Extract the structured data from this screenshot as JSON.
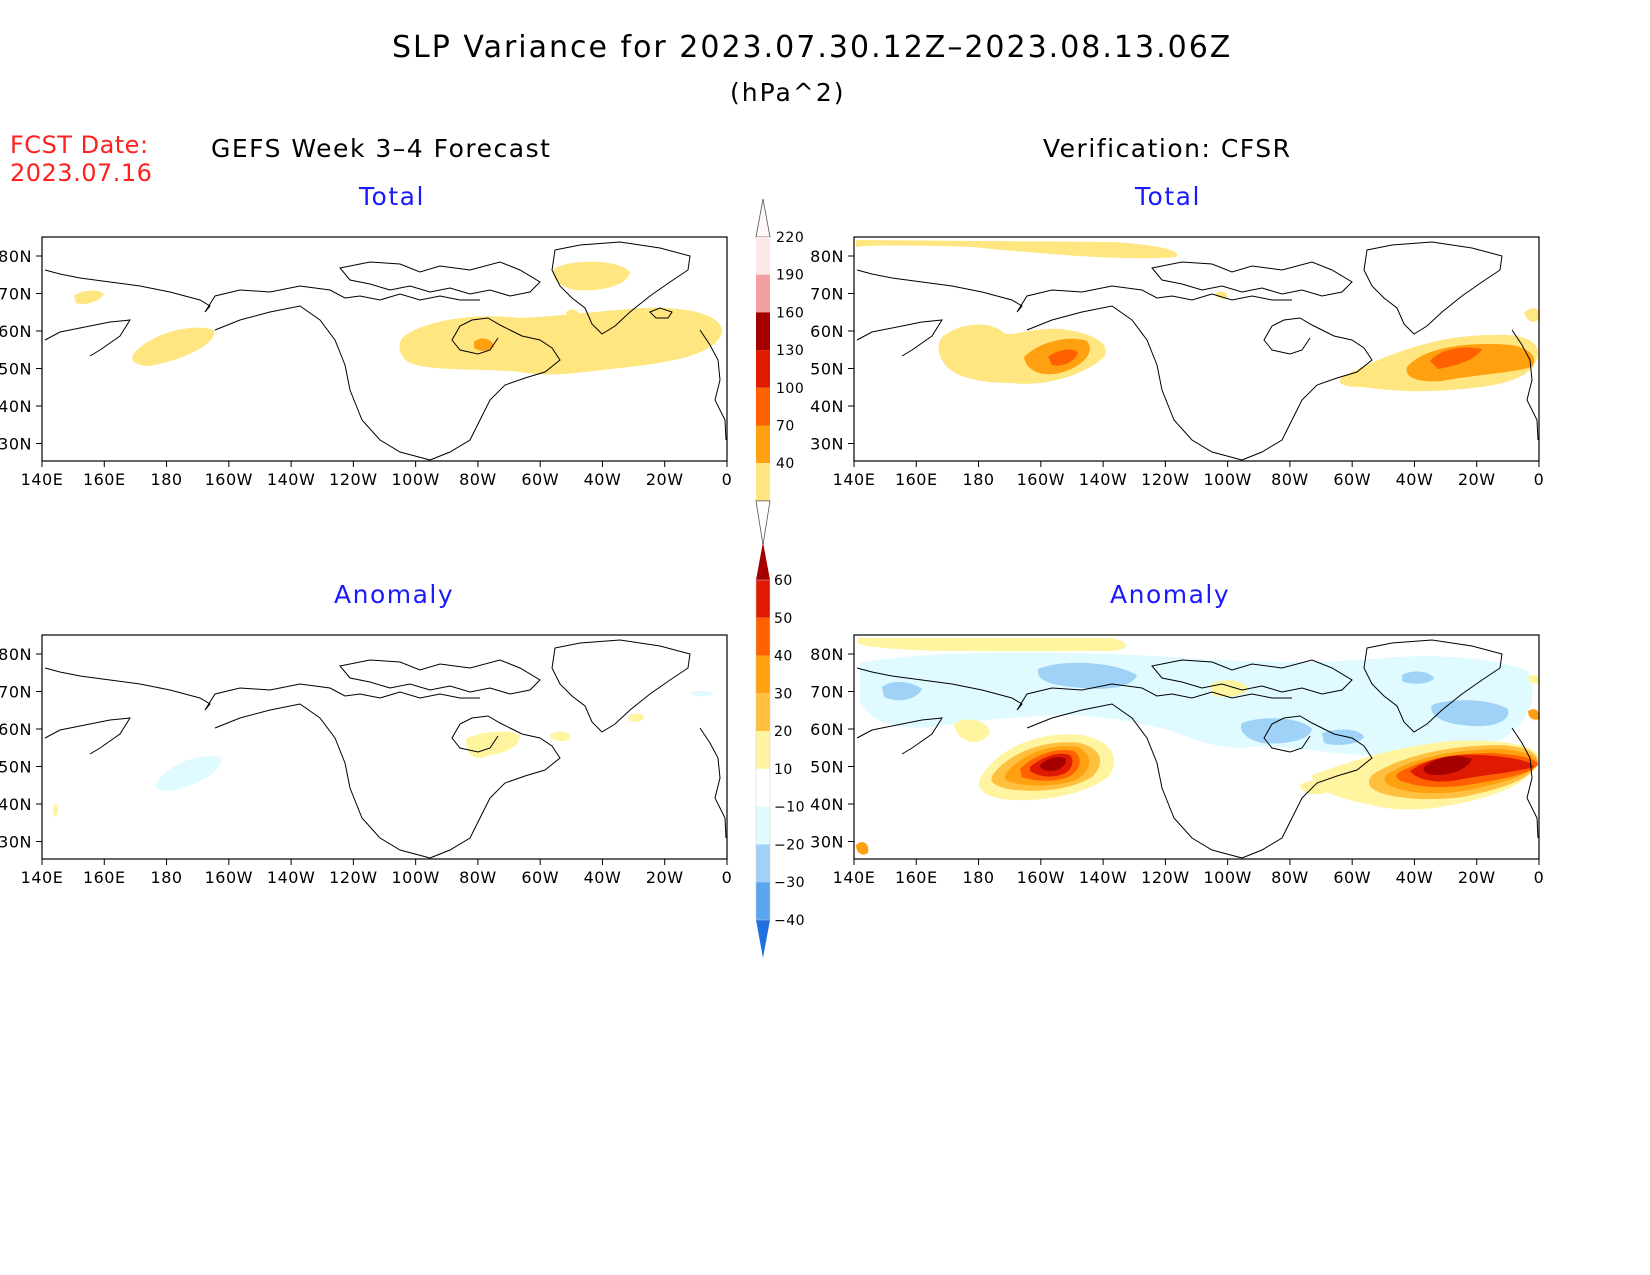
{
  "header": {
    "title": "SLP Variance for 2023.07.30.12Z–2023.08.13.06Z",
    "units": "(hPa^2)",
    "fcst_label": "FCST Date:",
    "fcst_date": "2023.07.16"
  },
  "columns": {
    "left": "GEFS Week 3–4 Forecast",
    "right": "Verification: CFSR"
  },
  "subtitles": {
    "total": "Total",
    "anomaly": "Anomaly"
  },
  "axes": {
    "lat_labels": [
      "80N",
      "70N",
      "60N",
      "50N",
      "40N",
      "30N"
    ],
    "lon_labels": [
      "140E",
      "160E",
      "180",
      "160W",
      "140W",
      "120W",
      "100W",
      "80W",
      "60W",
      "40W",
      "20W",
      "0"
    ]
  },
  "colorbar_total": {
    "labels": [
      "220",
      "190",
      "160",
      "130",
      "100",
      "70",
      "40"
    ],
    "colors": [
      "#fde6e6",
      "#f2a0a0",
      "#a50000",
      "#e01a00",
      "#ff6000",
      "#ffa010",
      "#ffe680"
    ]
  },
  "colorbar_anomaly": {
    "labels": [
      "60",
      "50",
      "40",
      "30",
      "20",
      "10",
      "−10",
      "−20",
      "−30",
      "−40"
    ],
    "colors": [
      "#a50000",
      "#e01a00",
      "#ff6000",
      "#ffa010",
      "#ffc040",
      "#fff5a0",
      "#ffffff",
      "#e0fbff",
      "#a0d2f8",
      "#5aa5f0",
      "#2070e0"
    ]
  },
  "colors": {
    "fill_40": "#ffe680",
    "fill_70": "#ffa010",
    "fill_100": "#ff6000",
    "anom_10": "#fff5a0",
    "anom_20": "#ffc040",
    "anom_30": "#ffa010",
    "anom_40": "#ff6000",
    "anom_50": "#e01a00",
    "anom_60": "#a50000",
    "anom_m10": "#e0fbff",
    "anom_m20": "#a0d2f8"
  }
}
